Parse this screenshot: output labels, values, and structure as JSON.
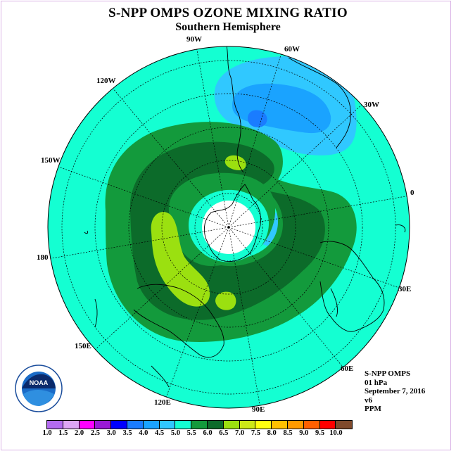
{
  "title": "S-NPP OMPS OZONE MIXING RATIO",
  "subtitle": "Southern Hemisphere",
  "longitude_labels": {
    "w90": "90W",
    "w60": "60W",
    "w30": "30W",
    "e0": "0",
    "e30": "30E",
    "e60": "60E",
    "e90": "90E",
    "e120": "120E",
    "e150": "150E",
    "l180": "180",
    "w150": "150W",
    "w120": "120W"
  },
  "info": {
    "instrument": "S-NPP OMPS",
    "level": "01 hPa",
    "date": "September 7, 2016",
    "version": "v6",
    "units": "PPM"
  },
  "logo": {
    "text": "NOAA",
    "ring_text": "NATIONAL OCEANIC AND ATMOSPHERIC ADMINISTRATION · U.S. DEPARTMENT OF COMMERCE"
  },
  "colorbar": {
    "colors": [
      "#b36bf0",
      "#dda6f5",
      "#ff00ff",
      "#9a1ad6",
      "#0000ff",
      "#1a7cff",
      "#1aa3ff",
      "#30c8ff",
      "#14ffd2",
      "#139a3c",
      "#0c6b2a",
      "#9be010",
      "#cde818",
      "#ffff10",
      "#ffc000",
      "#ff9a00",
      "#ff6000",
      "#ff0000",
      "#804a2c"
    ],
    "ticks": [
      "1.0",
      "1.5",
      "2.0",
      "2.5",
      "3.0",
      "3.5",
      "4.0",
      "4.5",
      "5.0",
      "5.5",
      "6.0",
      "6.5",
      "7.0",
      "7.5",
      "8.0",
      "8.5",
      "9.0",
      "9.5",
      "10.0"
    ]
  },
  "field_colors": {
    "background": "#14ffd2",
    "light_blue": "#30c8ff",
    "mid_blue": "#1aa3ff",
    "dark_blue": "#1a7cff",
    "green": "#139a3c",
    "dark_green": "#0c6b2a",
    "yellow_green": "#9be010",
    "pole": "#ffffff"
  }
}
